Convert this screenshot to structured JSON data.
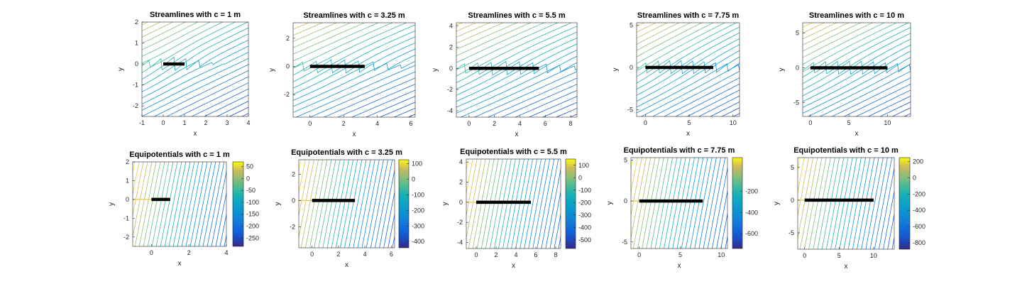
{
  "chart_data": [
    {
      "type": "contour",
      "variant": "streamlines",
      "title": "Streamlines with c = 1 m",
      "xlabel": "x",
      "ylabel": "y",
      "c": 1,
      "xlim": [
        -1,
        4
      ],
      "ylim": [
        -2.5,
        2
      ],
      "xticks": [
        -1,
        0,
        1,
        2,
        3,
        4
      ],
      "yticks": [
        -2,
        -1,
        0,
        1,
        2
      ]
    },
    {
      "type": "contour",
      "variant": "streamlines",
      "title": "Streamlines with c = 3.25 m",
      "xlabel": "x",
      "ylabel": "y",
      "c": 3.25,
      "xlim": [
        -1,
        6.25
      ],
      "ylim": [
        -3.6,
        3.1
      ],
      "xticks": [
        0,
        2,
        4,
        6
      ],
      "yticks": [
        -2,
        0,
        2
      ]
    },
    {
      "type": "contour",
      "variant": "streamlines",
      "title": "Streamlines with c = 5.5 m",
      "xlabel": "x",
      "ylabel": "y",
      "c": 5.5,
      "xlim": [
        -1,
        8.5
      ],
      "ylim": [
        -4.6,
        4.3
      ],
      "xticks": [
        0,
        2,
        4,
        6,
        8
      ],
      "yticks": [
        -4,
        -2,
        0,
        2,
        4
      ]
    },
    {
      "type": "contour",
      "variant": "streamlines",
      "title": "Streamlines with c = 7.75 m",
      "xlabel": "x",
      "ylabel": "y",
      "c": 7.75,
      "xlim": [
        -1,
        10.75
      ],
      "ylim": [
        -5.8,
        5.3
      ],
      "xticks": [
        0,
        5,
        10
      ],
      "yticks": [
        -5,
        0,
        5
      ]
    },
    {
      "type": "contour",
      "variant": "streamlines",
      "title": "Streamlines with c = 10 m",
      "xlabel": "x",
      "ylabel": "y",
      "c": 10,
      "xlim": [
        -1,
        13
      ],
      "ylim": [
        -7,
        6.5
      ],
      "xticks": [
        0,
        5,
        10
      ],
      "yticks": [
        -5,
        0,
        5
      ]
    },
    {
      "type": "contour",
      "variant": "equipotentials",
      "title": "Equipotentials with c = 1 m",
      "xlabel": "x",
      "ylabel": "y",
      "c": 1,
      "xlim": [
        -1,
        4
      ],
      "ylim": [
        -2.5,
        2
      ],
      "xticks": [
        0,
        2,
        4
      ],
      "yticks": [
        -2,
        -1,
        0,
        1,
        2
      ],
      "colorbar": {
        "ticks": [
          50,
          0,
          -50,
          -100,
          -150,
          -200,
          -250
        ],
        "range": [
          -285,
          70
        ]
      }
    },
    {
      "type": "contour",
      "variant": "equipotentials",
      "title": "Equipotentials with c = 3.25 m",
      "xlabel": "x",
      "ylabel": "y",
      "c": 3.25,
      "xlim": [
        -1,
        6.25
      ],
      "ylim": [
        -3.6,
        3.1
      ],
      "xticks": [
        0,
        2,
        4,
        6
      ],
      "yticks": [
        -2,
        0,
        2
      ],
      "colorbar": {
        "ticks": [
          100,
          0,
          -100,
          -200,
          -300,
          -400
        ],
        "range": [
          -440,
          125
        ]
      }
    },
    {
      "type": "contour",
      "variant": "equipotentials",
      "title": "Equipotentials with c = 5.5 m",
      "xlabel": "x",
      "ylabel": "y",
      "c": 5.5,
      "xlim": [
        -1,
        8.5
      ],
      "ylim": [
        -4.6,
        4.3
      ],
      "xticks": [
        0,
        2,
        4,
        6,
        8
      ],
      "yticks": [
        -4,
        -2,
        0,
        2,
        4
      ],
      "colorbar": {
        "ticks": [
          100,
          0,
          -100,
          -200,
          -300,
          -400,
          -500
        ],
        "range": [
          -570,
          150
        ]
      }
    },
    {
      "type": "contour",
      "variant": "equipotentials",
      "title": "Equipotentials with c = 7.75 m",
      "xlabel": "x",
      "ylabel": "y",
      "c": 7.75,
      "xlim": [
        -1,
        10.75
      ],
      "ylim": [
        -5.8,
        5.3
      ],
      "xticks": [
        0,
        5,
        10
      ],
      "yticks": [
        -5,
        0,
        5
      ],
      "colorbar": {
        "ticks": [
          -200,
          -400,
          -600
        ],
        "range": [
          -740,
          120
        ]
      }
    },
    {
      "type": "contour",
      "variant": "equipotentials",
      "title": "Equipotentials with c = 10 m",
      "xlabel": "x",
      "ylabel": "y",
      "c": 10,
      "xlim": [
        -1,
        13
      ],
      "ylim": [
        -7.5,
        6.5
      ],
      "xticks": [
        0,
        5,
        10
      ],
      "yticks": [
        -5,
        0,
        5
      ],
      "colorbar": {
        "ticks": [
          200,
          0,
          -200,
          -400,
          -600,
          -800
        ],
        "range": [
          -880,
          250
        ]
      }
    }
  ]
}
